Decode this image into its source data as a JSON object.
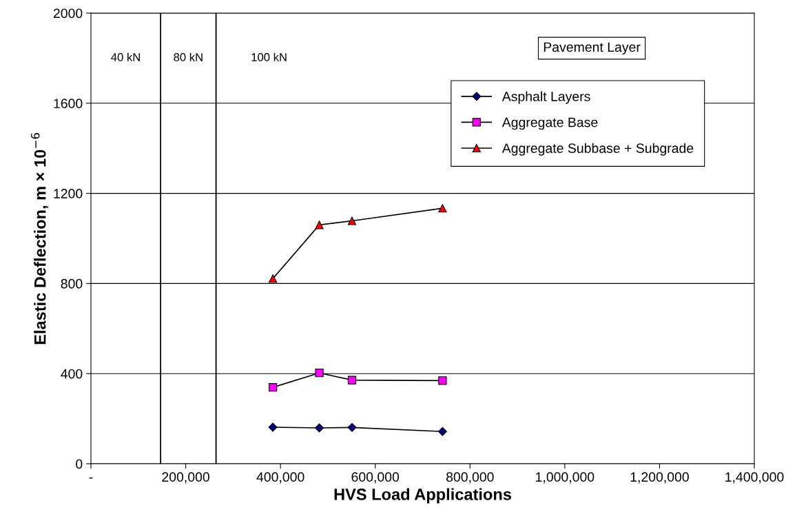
{
  "chart_data": {
    "type": "line",
    "xlabel": "HVS Load Applications",
    "ylabel": "Elastic Deflection, m × 10$^{−6}$",
    "legend_title": "Pavement Layer",
    "x": [
      384000,
      482000,
      551000,
      742000
    ],
    "series": [
      {
        "name": "Asphalt Layers",
        "color": "#000080",
        "marker": "diamond",
        "values": [
          162,
          159,
          161,
          143
        ]
      },
      {
        "name": "Aggregate Base",
        "color": "#ff00ff",
        "marker": "square",
        "values": [
          339,
          403,
          371,
          369
        ]
      },
      {
        "name": "Aggregate Subbase + Subgrade",
        "color": "#ff0000",
        "marker": "triangle",
        "values": [
          822,
          1060,
          1078,
          1134
        ]
      }
    ],
    "xlim": [
      0,
      1400000
    ],
    "xticks": [
      {
        "value": 0,
        "label": "-"
      },
      {
        "value": 200000,
        "label": "200,000"
      },
      {
        "value": 400000,
        "label": "400,000"
      },
      {
        "value": 600000,
        "label": "600,000"
      },
      {
        "value": 800000,
        "label": "800,000"
      },
      {
        "value": 1000000,
        "label": "1,000,000"
      },
      {
        "value": 1200000,
        "label": "1,200,000"
      },
      {
        "value": 1400000,
        "label": "1,400,000"
      }
    ],
    "ylim": [
      0,
      2000
    ],
    "yticks": [
      0,
      400,
      800,
      1200,
      1600,
      2000
    ],
    "grid": "y",
    "legend": "top right",
    "line_style": "solid",
    "ref_lines": [
      {
        "axis": "x",
        "value": 147000,
        "color": "#000000"
      },
      {
        "axis": "x",
        "value": 264000,
        "color": "#000000"
      }
    ],
    "annotations": [
      "40 kN",
      "80 kN",
      "100 kN"
    ]
  }
}
